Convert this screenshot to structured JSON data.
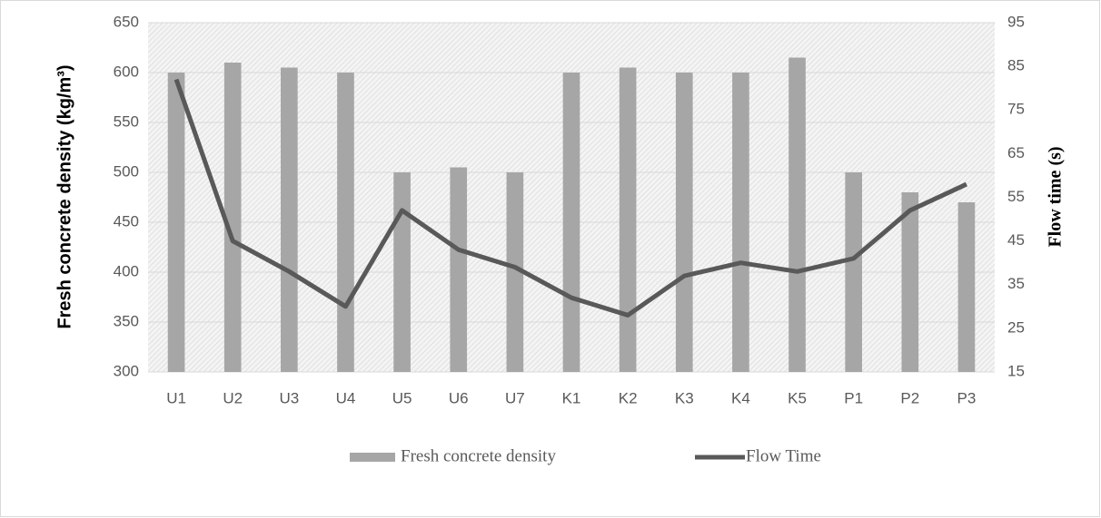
{
  "chart_data": {
    "type": "bar",
    "categories": [
      "U1",
      "U2",
      "U3",
      "U4",
      "U5",
      "U6",
      "U7",
      "K1",
      "K2",
      "K3",
      "K4",
      "K5",
      "P1",
      "P2",
      "P3"
    ],
    "series": [
      {
        "name": "Fresh concrete density",
        "type": "bar",
        "color": "#a6a6a6",
        "values": [
          600,
          610,
          605,
          600,
          500,
          505,
          500,
          600,
          605,
          600,
          600,
          615,
          500,
          480,
          470
        ]
      },
      {
        "name": "Flow Time",
        "type": "line",
        "axis": "y2",
        "color": "#595959",
        "values": [
          82,
          45,
          38,
          30,
          52,
          43,
          39,
          32,
          28,
          37,
          40,
          38,
          41,
          52,
          58
        ]
      }
    ],
    "ylabel": "Fresh concrete density (kg/m³)",
    "y2label": "Flow time (s)",
    "ylim": [
      300,
      650
    ],
    "yticks": [
      300,
      350,
      400,
      450,
      500,
      550,
      600,
      650
    ],
    "y2lim": [
      15,
      95
    ],
    "y2ticks": [
      15,
      25,
      35,
      45,
      55,
      65,
      75,
      85,
      95
    ],
    "grid": true,
    "legend": "bottom"
  }
}
